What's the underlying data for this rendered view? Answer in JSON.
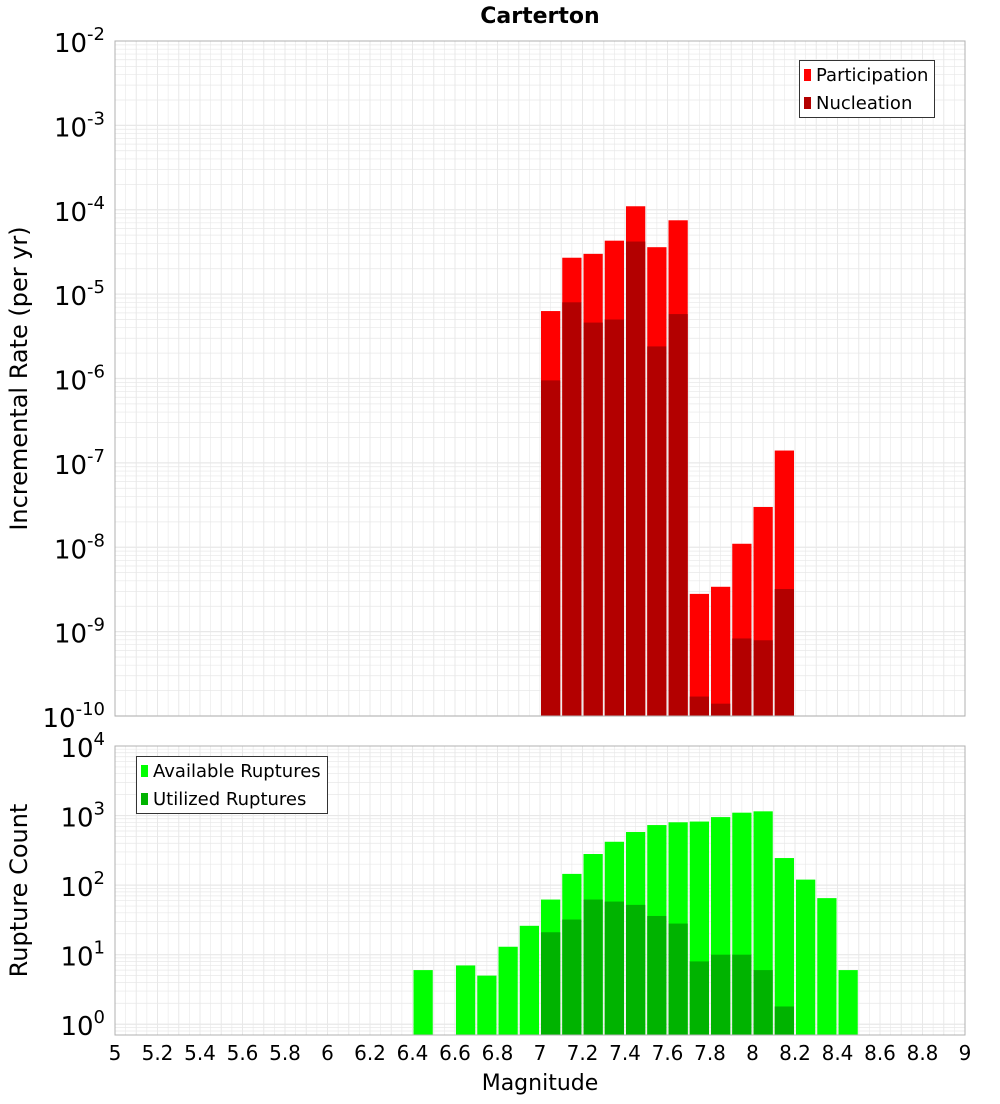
{
  "chart_data": [
    {
      "type": "bar",
      "title": "Carterton",
      "xlabel": "",
      "ylabel": "Incremental Rate (per yr)",
      "yscale": "log",
      "ylim": [
        1e-10,
        0.01
      ],
      "xlim": [
        5,
        9
      ],
      "legend_position": "top-right",
      "bin_width": 0.1,
      "series": [
        {
          "name": "Participation",
          "color": "#ff0000",
          "x": [
            7.05,
            7.15,
            7.25,
            7.35,
            7.45,
            7.55,
            7.65,
            7.75,
            7.85,
            7.95,
            8.05,
            8.15
          ],
          "values": [
            6.3e-06,
            2.7e-05,
            3e-05,
            4.3e-05,
            0.00011,
            3.6e-05,
            7.5e-05,
            2.8e-09,
            3.4e-09,
            1.1e-08,
            3e-08,
            1.4e-07
          ]
        },
        {
          "name": "Nucleation",
          "color": "#b30000",
          "x": [
            7.05,
            7.15,
            7.25,
            7.35,
            7.45,
            7.55,
            7.65,
            7.75,
            7.85,
            7.95,
            8.05,
            8.15
          ],
          "values": [
            9.5e-07,
            8e-06,
            4.6e-06,
            5e-06,
            4.2e-05,
            2.4e-06,
            5.8e-06,
            1.7e-10,
            1.4e-10,
            8.3e-10,
            7.9e-10,
            3.2e-09
          ]
        }
      ]
    },
    {
      "type": "bar",
      "title": "",
      "xlabel": "Magnitude",
      "ylabel": "Rupture Count",
      "yscale": "log",
      "ylim": [
        0.7,
        10000
      ],
      "xlim": [
        5,
        9
      ],
      "legend_position": "top-left",
      "bin_width": 0.1,
      "series": [
        {
          "name": "Available Ruptures",
          "color": "#00ff00",
          "x": [
            6.45,
            6.65,
            6.75,
            6.85,
            6.95,
            7.05,
            7.15,
            7.25,
            7.35,
            7.45,
            7.55,
            7.65,
            7.75,
            7.85,
            7.95,
            8.05,
            8.15,
            8.25,
            8.35,
            8.45
          ],
          "values": [
            6,
            7,
            5,
            13,
            26,
            62,
            145,
            280,
            420,
            580,
            730,
            800,
            820,
            950,
            1100,
            1150,
            245,
            120,
            65,
            6
          ]
        },
        {
          "name": "Utilized Ruptures",
          "color": "#00b300",
          "x": [
            7.05,
            7.15,
            7.25,
            7.35,
            7.45,
            7.55,
            7.65,
            7.75,
            7.85,
            7.95,
            8.05,
            8.15
          ],
          "values": [
            21,
            32,
            62,
            58,
            52,
            36,
            28,
            8,
            10,
            10,
            6,
            1.8
          ]
        }
      ]
    }
  ],
  "x_ticks": [
    "5",
    "5.2",
    "5.4",
    "5.6",
    "5.8",
    "6",
    "6.2",
    "6.4",
    "6.6",
    "6.8",
    "7",
    "7.2",
    "7.4",
    "7.6",
    "7.8",
    "8",
    "8.2",
    "8.4",
    "8.6",
    "8.8",
    "9"
  ],
  "top_y_ticks": [
    {
      "base": "10",
      "exp": "-2",
      "value": 0.01
    },
    {
      "base": "10",
      "exp": "-3",
      "value": 0.001
    },
    {
      "base": "10",
      "exp": "-4",
      "value": 0.0001
    },
    {
      "base": "10",
      "exp": "-5",
      "value": 1e-05
    },
    {
      "base": "10",
      "exp": "-6",
      "value": 1e-06
    },
    {
      "base": "10",
      "exp": "-7",
      "value": 1e-07
    },
    {
      "base": "10",
      "exp": "-8",
      "value": 1e-08
    },
    {
      "base": "10",
      "exp": "-9",
      "value": 1e-09
    },
    {
      "base": "10",
      "exp": "-10",
      "value": 1e-10
    }
  ],
  "bottom_y_ticks": [
    {
      "base": "10",
      "exp": "4",
      "value": 10000
    },
    {
      "base": "10",
      "exp": "3",
      "value": 1000
    },
    {
      "base": "10",
      "exp": "2",
      "value": 100
    },
    {
      "base": "10",
      "exp": "1",
      "value": 10
    },
    {
      "base": "10",
      "exp": "0",
      "value": 1
    }
  ],
  "colors": {
    "grid": "#e8e8e8",
    "frame": "#b0b0b0",
    "text": "#000000"
  }
}
